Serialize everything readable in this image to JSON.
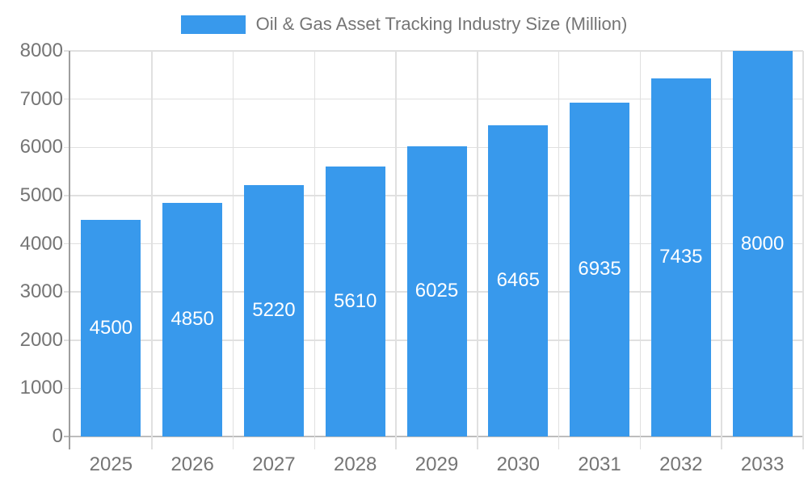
{
  "legend": {
    "label": "Oil & Gas Asset Tracking Industry Size (Million)"
  },
  "chart_data": {
    "type": "bar",
    "title": "Oil & Gas Asset Tracking Industry Size (Million)",
    "categories": [
      "2025",
      "2026",
      "2027",
      "2028",
      "2029",
      "2030",
      "2031",
      "2032",
      "2033"
    ],
    "values": [
      4500,
      4850,
      5220,
      5610,
      6025,
      6465,
      6935,
      7435,
      8000
    ],
    "bar_value_labels": [
      "4500",
      "4850",
      "5220",
      "5610",
      "6025",
      "6465",
      "6935",
      "7435",
      "8000"
    ],
    "xlabel": "",
    "ylabel": "",
    "ylim": [
      0,
      8000
    ],
    "yticks": [
      0,
      1000,
      2000,
      3000,
      4000,
      5000,
      6000,
      7000,
      8000
    ],
    "grid": true,
    "legend_position": "top"
  },
  "colors": {
    "bar": "#3899ec",
    "grid": "#e0e0e0",
    "baseline": "#bdbdbd",
    "axis_line": "#9e9e9e",
    "tick_text": "#757575",
    "bar_label_text": "#ffffff",
    "background": "#ffffff"
  }
}
